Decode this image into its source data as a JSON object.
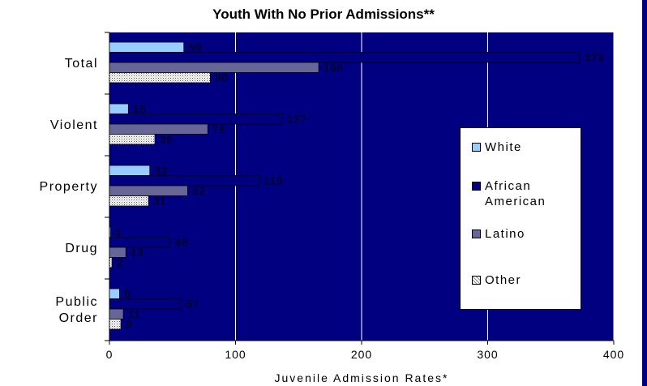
{
  "chart_data": {
    "type": "bar",
    "orientation": "horizontal",
    "title": "Youth With No Prior Admissions**",
    "xlabel": "Juvenile Admission Rates*",
    "ylabel": "",
    "xlim": [
      0,
      400
    ],
    "xticks": [
      0,
      100,
      200,
      300,
      400
    ],
    "grid": true,
    "legend_position": "right",
    "categories": [
      {
        "lines": [
          "Total"
        ]
      },
      {
        "lines": [
          "Violent"
        ]
      },
      {
        "lines": [
          "Property"
        ]
      },
      {
        "lines": [
          "Drug"
        ]
      },
      {
        "lines": [
          "Public",
          "Order"
        ]
      }
    ],
    "series": [
      {
        "name": "White",
        "color": "#99ccff",
        "pattern": "solid",
        "values": [
          59,
          15,
          32,
          1,
          8
        ]
      },
      {
        "name": "African American",
        "color": "#000080",
        "pattern": "solid",
        "values": [
          373,
          137,
          119,
          48,
          57
        ]
      },
      {
        "name": "Latino",
        "color": "#666699",
        "pattern": "solid",
        "values": [
          166,
          78,
          62,
          13,
          11
        ]
      },
      {
        "name": "Other",
        "color": "#c0c0c0",
        "pattern": "dotted",
        "values": [
          80,
          36,
          31,
          2,
          9
        ]
      }
    ],
    "plot_background": "#000080"
  }
}
